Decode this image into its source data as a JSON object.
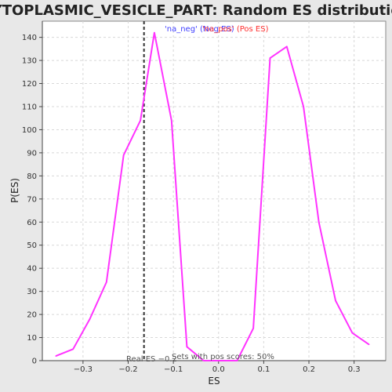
{
  "chart_data": {
    "type": "line",
    "title": "CYTOPLASMIC_VESICLE_PART: Random ES distribution",
    "xlabel": "ES",
    "ylabel": "P(ES)",
    "xlim": [
      -0.39,
      0.37
    ],
    "ylim": [
      0,
      147
    ],
    "x_ticks": [
      -0.3,
      -0.2,
      -0.1,
      0.0,
      0.1,
      0.2,
      0.3
    ],
    "x_tick_labels": [
      "−0.3",
      "−0.2",
      "−0.1",
      "0.0",
      "0.1",
      "0.2",
      "0.3"
    ],
    "y_ticks": [
      0,
      10,
      20,
      30,
      40,
      50,
      60,
      70,
      80,
      90,
      100,
      110,
      120,
      130,
      140
    ],
    "y_tick_labels": [
      "0",
      "10",
      "20",
      "30",
      "40",
      "50",
      "60",
      "70",
      "80",
      "90",
      "100",
      "110",
      "120",
      "130",
      "140"
    ],
    "grid": true,
    "legend_position": "top",
    "legend_neg_label": "'na_neg' (Neg ES)",
    "legend_pos_label": "'na_pos' (Pos ES)",
    "series": [
      {
        "color": "#ff33ff",
        "x": [
          -0.36,
          -0.322,
          -0.285,
          -0.248,
          -0.21,
          -0.173,
          -0.142,
          -0.104,
          -0.07,
          -0.033,
          0.004,
          0.041,
          0.077,
          0.114,
          0.151,
          0.188,
          0.222,
          0.259,
          0.296,
          0.333
        ],
        "y": [
          2,
          5,
          18,
          34,
          89,
          104,
          142,
          104,
          6,
          0,
          0,
          0,
          14,
          131,
          136,
          110,
          60,
          26,
          12,
          7
        ]
      }
    ],
    "real_es": -0.165,
    "real_es_label": "Real ES −0.2",
    "annotation": "Sets with pos scores: 50%",
    "colors": {
      "background": "#e8e8e8",
      "plot_bg": "#ffffff",
      "grid": "#d8d8d8",
      "line": "#ff33ff",
      "neg_legend": "#4040ff",
      "pos_legend": "#ff3030",
      "real_es_line": "#333333"
    }
  }
}
